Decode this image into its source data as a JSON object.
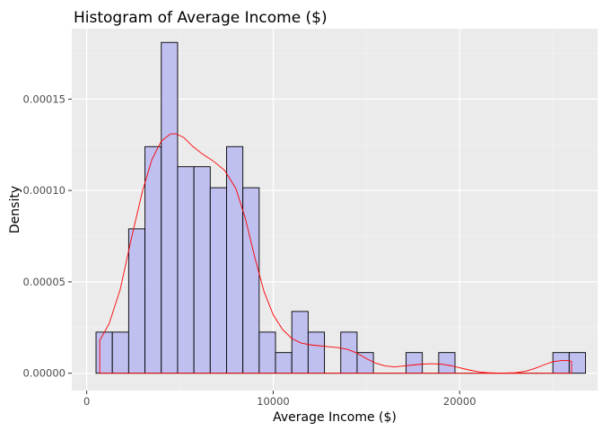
{
  "chart_data": {
    "type": "bar",
    "title": "Histogram of Average Income ($)",
    "xlabel": "Average Income ($)",
    "ylabel": "Density",
    "xlim": [
      -800,
      27400
    ],
    "ylim": [
      -9.5e-06,
      0.0001885
    ],
    "x_ticks": [
      0,
      10000,
      20000
    ],
    "x_tick_labels": [
      "0",
      "10000",
      "20000"
    ],
    "y_ticks": [
      0,
      5e-05,
      0.0001,
      0.00015
    ],
    "y_tick_labels": [
      "0.00000",
      "0.00005",
      "0.00010",
      "0.00015"
    ],
    "grid": true,
    "bin_width": 875,
    "bins": [
      {
        "x0": 500,
        "x1": 1375,
        "density": 2.25e-05
      },
      {
        "x0": 1375,
        "x1": 2250,
        "density": 2.25e-05
      },
      {
        "x0": 2250,
        "x1": 3125,
        "density": 7.9e-05
      },
      {
        "x0": 3125,
        "x1": 4000,
        "density": 0.000124
      },
      {
        "x0": 4000,
        "x1": 4875,
        "density": 0.000181
      },
      {
        "x0": 4875,
        "x1": 5750,
        "density": 0.000113
      },
      {
        "x0": 5750,
        "x1": 6625,
        "density": 0.000113
      },
      {
        "x0": 6625,
        "x1": 7500,
        "density": 0.0001015
      },
      {
        "x0": 7500,
        "x1": 8375,
        "density": 0.000124
      },
      {
        "x0": 8375,
        "x1": 9250,
        "density": 0.0001015
      },
      {
        "x0": 9250,
        "x1": 10125,
        "density": 2.25e-05
      },
      {
        "x0": 10125,
        "x1": 11000,
        "density": 1.13e-05
      },
      {
        "x0": 11000,
        "x1": 11875,
        "density": 3.38e-05
      },
      {
        "x0": 11875,
        "x1": 12750,
        "density": 2.25e-05
      },
      {
        "x0": 12750,
        "x1": 13625,
        "density": 0
      },
      {
        "x0": 13625,
        "x1": 14500,
        "density": 2.25e-05
      },
      {
        "x0": 14500,
        "x1": 15375,
        "density": 1.13e-05
      },
      {
        "x0": 15375,
        "x1": 16250,
        "density": 0
      },
      {
        "x0": 16250,
        "x1": 17125,
        "density": 0
      },
      {
        "x0": 17125,
        "x1": 18000,
        "density": 1.13e-05
      },
      {
        "x0": 18000,
        "x1": 18875,
        "density": 0
      },
      {
        "x0": 18875,
        "x1": 19750,
        "density": 1.13e-05
      },
      {
        "x0": 19750,
        "x1": 20625,
        "density": 0
      },
      {
        "x0": 20625,
        "x1": 21500,
        "density": 0
      },
      {
        "x0": 21500,
        "x1": 22375,
        "density": 0
      },
      {
        "x0": 22375,
        "x1": 23250,
        "density": 0
      },
      {
        "x0": 23250,
        "x1": 24125,
        "density": 0
      },
      {
        "x0": 24125,
        "x1": 25000,
        "density": 0
      },
      {
        "x0": 25000,
        "x1": 25875,
        "density": 1.13e-05
      },
      {
        "x0": 25875,
        "x1": 26750,
        "density": 1.13e-05
      }
    ],
    "density_curve": {
      "x": [
        700,
        1200,
        1800,
        2400,
        3000,
        3500,
        4000,
        4500,
        4800,
        5200,
        5700,
        6200,
        6800,
        7400,
        8000,
        8500,
        9000,
        9500,
        10000,
        10500,
        11000,
        11500,
        12000,
        12500,
        13000,
        13500,
        14000,
        14500,
        15000,
        15500,
        16000,
        16500,
        17000,
        17500,
        18000,
        18500,
        19000,
        19500,
        20000,
        20500,
        21000,
        21500,
        22000,
        22500,
        23000,
        23500,
        24000,
        24500,
        25000,
        25500,
        25800,
        26000
      ],
      "y": [
        1.8e-05,
        2.7e-05,
        4.6e-05,
        7.4e-05,
        0.0001,
        0.000117,
        0.000127,
        0.000131,
        0.000131,
        0.000129,
        0.000124,
        0.00012,
        0.000116,
        0.000111,
        0.000101,
        8.5e-05,
        6.4e-05,
        4.5e-05,
        3.2e-05,
        2.4e-05,
        1.9e-05,
        1.65e-05,
        1.55e-05,
        1.5e-05,
        1.45e-05,
        1.4e-05,
        1.3e-05,
        1.1e-05,
        8e-06,
        5.5e-06,
        4e-06,
        3.5e-06,
        4e-06,
        4.5e-06,
        5e-06,
        5.2e-06,
        5e-06,
        4.2e-06,
        3e-06,
        1.8e-06,
        8e-07,
        3e-07,
        1e-07,
        1e-07,
        3e-07,
        1e-06,
        2.5e-06,
        4.5e-06,
        6.3e-06,
        7e-06,
        7e-06,
        6.5e-06
      ]
    },
    "colors": {
      "panel_background": "#ebebeb",
      "grid_major": "#ffffff",
      "grid_minor": "#f5f5f5",
      "bar_fill": "#bdbdf0",
      "bar_outline": "#000000",
      "density_line": "#ff0000",
      "tick_label": "#4d4d4d",
      "tick_mark": "#333333"
    }
  }
}
